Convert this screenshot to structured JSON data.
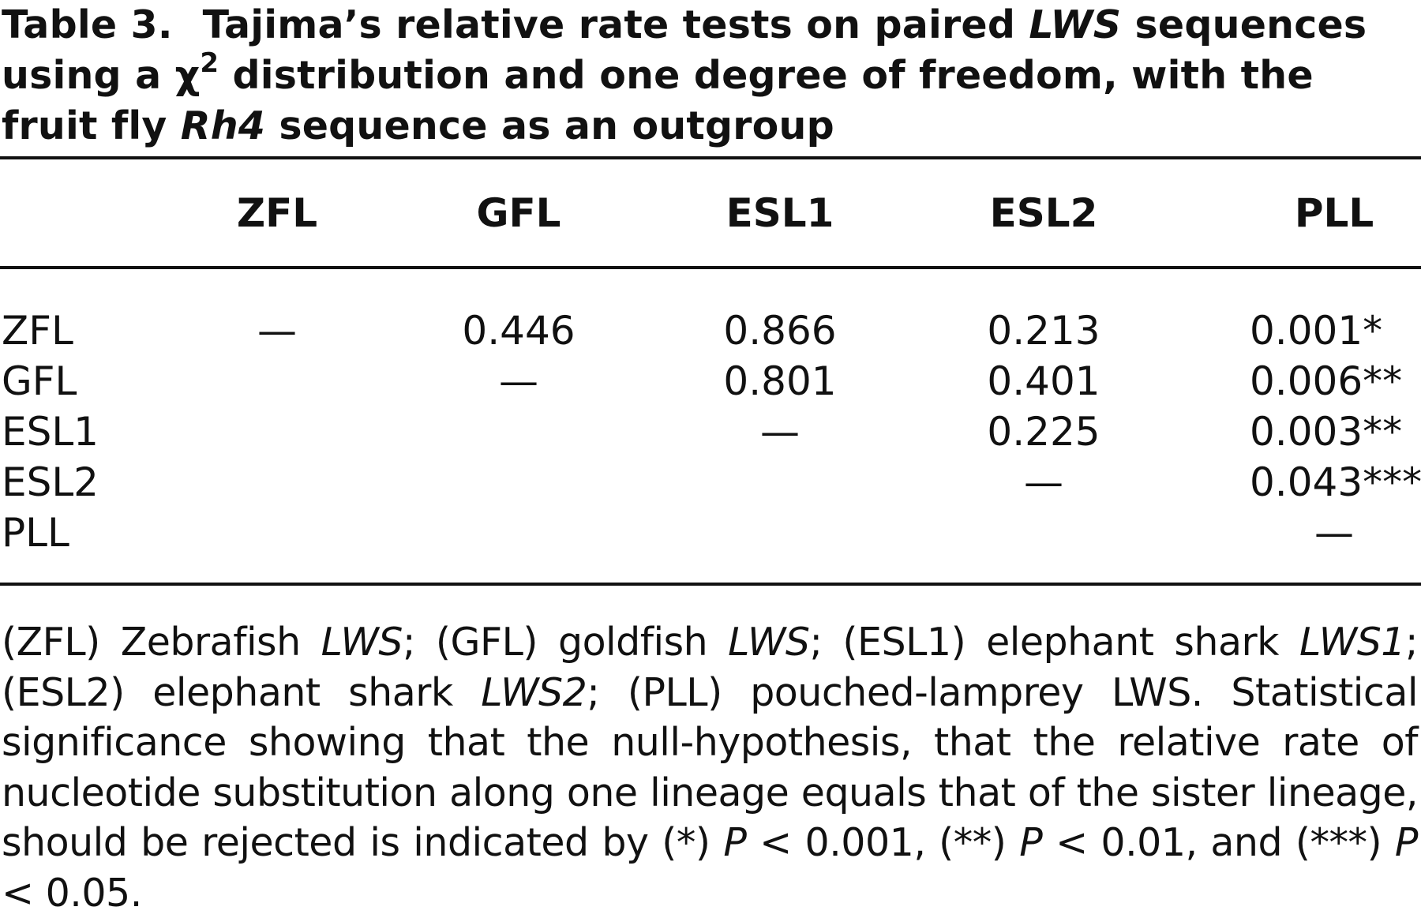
{
  "caption": {
    "label": "Table 3.",
    "part1": "Tajima’s relative rate tests on paired ",
    "part1_italic": "LWS",
    "part2": " sequences using a ",
    "chi": "χ",
    "chi_sup": "2",
    "part3": " distribution and one degree of freedom, with the fruit fly ",
    "part3_italic": "Rh4",
    "part4": " sequence as an outgroup"
  },
  "table": {
    "columns": [
      "ZFL",
      "GFL",
      "ESL1",
      "ESL2",
      "PLL"
    ],
    "rows": [
      {
        "label": "ZFL",
        "cells": [
          "—",
          "0.446",
          "0.866",
          "0.213",
          "0.001*"
        ]
      },
      {
        "label": "GFL",
        "cells": [
          "",
          "—",
          "0.801",
          "0.401",
          "0.006**"
        ]
      },
      {
        "label": "ESL1",
        "cells": [
          "",
          "",
          "—",
          "0.225",
          "0.003**"
        ]
      },
      {
        "label": "ESL2",
        "cells": [
          "",
          "",
          "",
          "—",
          "0.043***"
        ]
      },
      {
        "label": "PLL",
        "cells": [
          "",
          "",
          "",
          "",
          "—"
        ]
      }
    ]
  },
  "footnote": {
    "s1": "(ZFL) Zebrafish ",
    "s1i": "LWS",
    "s2": "; (GFL) goldfish ",
    "s2i": "LWS",
    "s3": "; (ESL1) elephant shark ",
    "s3i": "LWS1",
    "s4": "; (ESL2) elephant shark ",
    "s4i": "LWS2",
    "s5": "; (PLL) pouched-lamprey LWS. Statistical significance showing that the null-hypothesis, that the relative rate of nucleotide substitution along one lineage equals that of the sister lineage, should be rejected is indicated by (*) ",
    "p1": "P",
    "s6": " < 0.001, (**) ",
    "p2": "P",
    "s7": " < 0.01, and (***) ",
    "p3": "P",
    "s8": " < 0.05."
  }
}
